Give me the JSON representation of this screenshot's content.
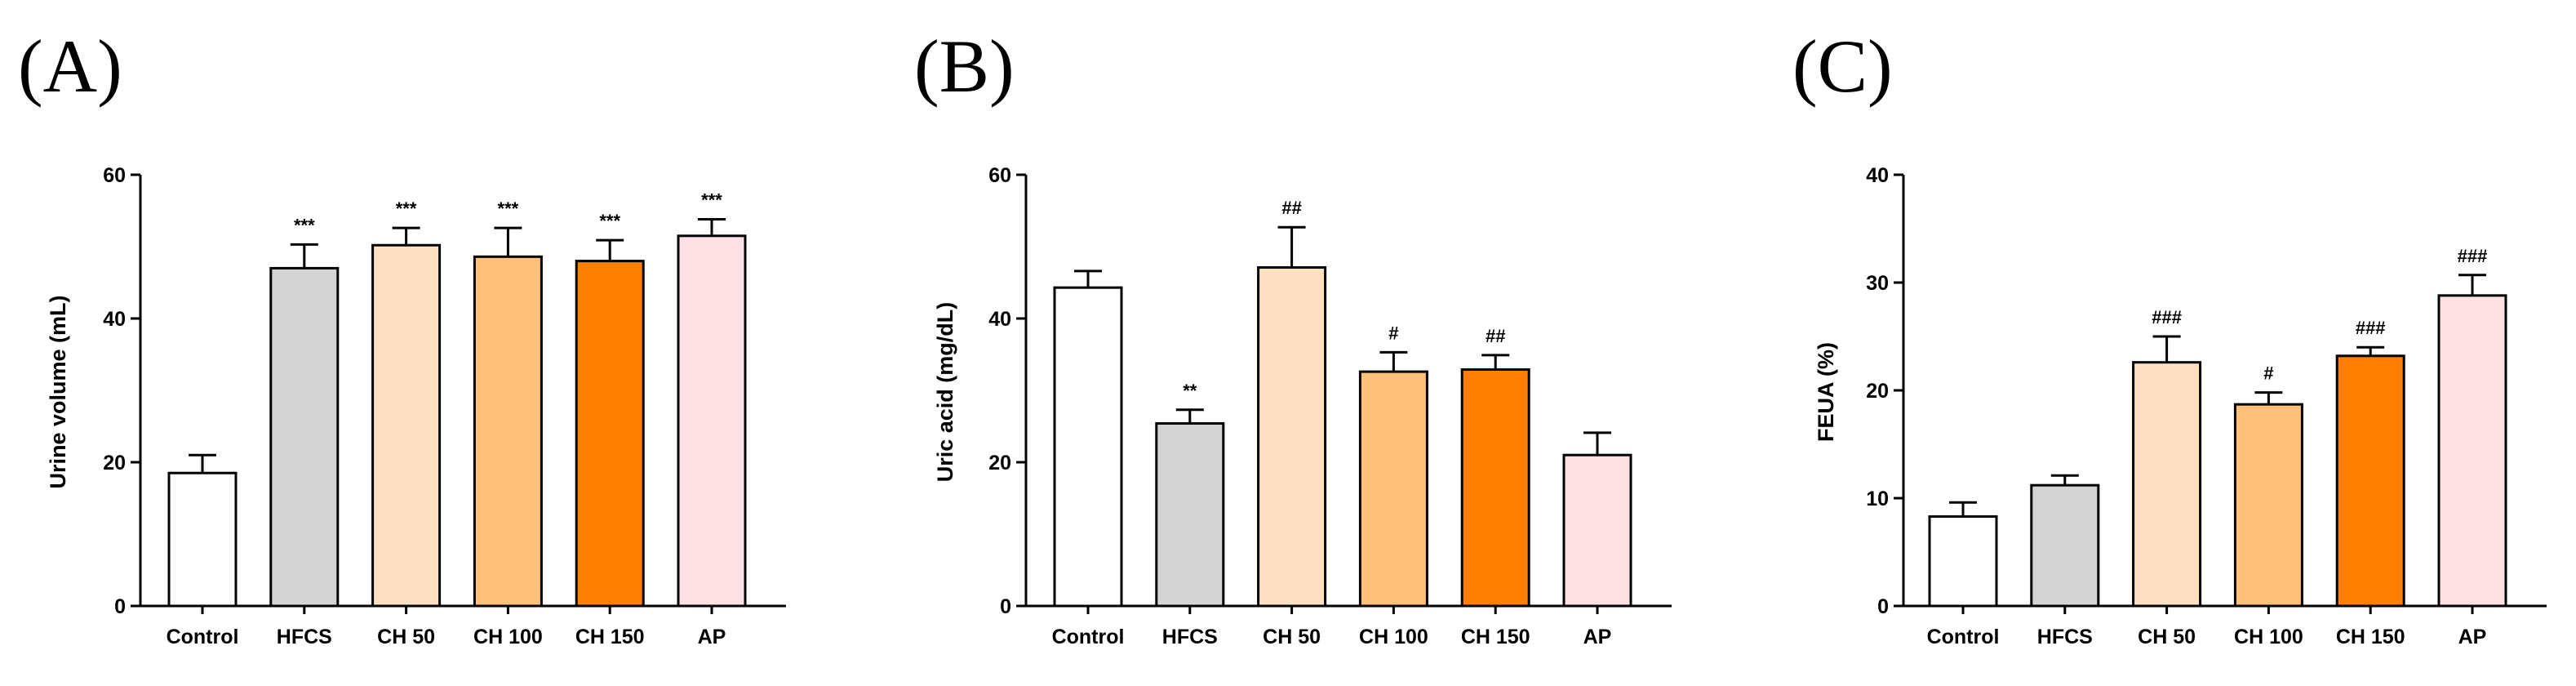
{
  "chart_data": [
    {
      "panel": "(A)",
      "type": "bar",
      "title": "",
      "xlabel": "",
      "ylabel": "Urine volume (mL)",
      "ylim": [
        0,
        60
      ],
      "yticks": [
        "0",
        "20",
        "40",
        "60"
      ],
      "categories": [
        "Control",
        "HFCS",
        "CH 50",
        "CH 100",
        "CH 150",
        "AP"
      ],
      "values": [
        18.5,
        47.0,
        50.2,
        48.6,
        48.0,
        51.5
      ],
      "errors": [
        2.5,
        3.3,
        2.4,
        4.0,
        2.9,
        2.3
      ],
      "annotations": [
        "",
        "***",
        "***",
        "***",
        "***",
        "***"
      ],
      "colors": [
        "#ffffff",
        "#d4d4d4",
        "#ffe0c2",
        "#ffc07c",
        "#ff7f00",
        "#ffe1e5"
      ]
    },
    {
      "panel": "(B)",
      "type": "bar",
      "title": "",
      "xlabel": "",
      "ylabel": "Uric acid (mg/dL)",
      "ylim": [
        0,
        60
      ],
      "yticks": [
        "0",
        "20",
        "40",
        "60"
      ],
      "categories": [
        "Control",
        "HFCS",
        "CH 50",
        "CH 100",
        "CH 150",
        "AP"
      ],
      "values": [
        44.3,
        25.4,
        47.1,
        32.6,
        32.9,
        21.0
      ],
      "errors": [
        2.3,
        1.9,
        5.6,
        2.7,
        2.0,
        3.1
      ],
      "annotations": [
        "",
        "**",
        "##",
        "#",
        "##",
        ""
      ],
      "colors": [
        "#ffffff",
        "#d4d4d4",
        "#ffe0c2",
        "#ffc07c",
        "#ff7f00",
        "#ffe1e5"
      ]
    },
    {
      "panel": "(C)",
      "type": "bar",
      "title": "",
      "xlabel": "",
      "ylabel": "FEUA (%)",
      "ylim": [
        0,
        40
      ],
      "yticks": [
        "0",
        "10",
        "20",
        "30",
        "40"
      ],
      "categories": [
        "Control",
        "HFCS",
        "CH 50",
        "CH 100",
        "CH 150",
        "AP"
      ],
      "values": [
        8.3,
        11.2,
        22.6,
        18.7,
        23.2,
        28.8
      ],
      "errors": [
        1.3,
        0.9,
        2.4,
        1.1,
        0.8,
        1.9
      ],
      "annotations": [
        "",
        "",
        "###",
        "#",
        "###",
        "###"
      ],
      "colors": [
        "#ffffff",
        "#d4d4d4",
        "#ffe0c2",
        "#ffc07c",
        "#ff7f00",
        "#ffe1e5"
      ]
    }
  ]
}
